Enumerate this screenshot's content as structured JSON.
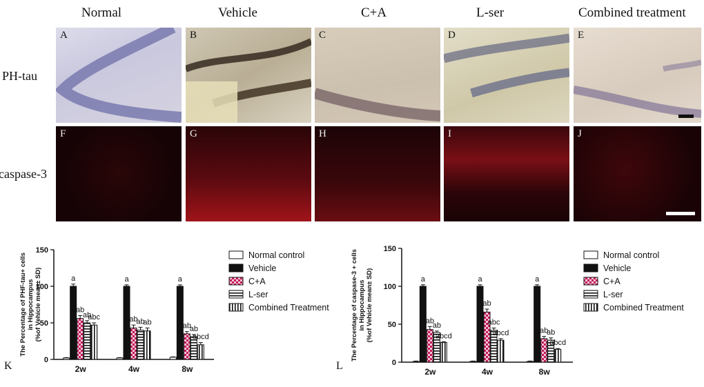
{
  "columns": [
    "Normal",
    "Vehicle",
    "C+A",
    "L-ser",
    "Combined treatment"
  ],
  "rows": [
    "PH-tau",
    "caspase-3"
  ],
  "panel_letters_top": [
    "A",
    "B",
    "C",
    "D",
    "E"
  ],
  "panel_letters_bottom": [
    "F",
    "G",
    "H",
    "I",
    "J"
  ],
  "chart_data": [
    {
      "type": "bar",
      "panel": "K",
      "ylabel_lines": [
        "The Percentage of PHF-tau+ cells",
        "in Hippocampus",
        "(%of Vehicle mean± SD)"
      ],
      "categories": [
        "2w",
        "4w",
        "8w"
      ],
      "ylim": [
        0,
        150
      ],
      "yticks": [
        0,
        50,
        100,
        150
      ],
      "series": [
        {
          "name": "Normal control",
          "values": [
            2,
            2,
            3
          ],
          "errors": [
            0.5,
            0.5,
            0.5
          ],
          "pattern": "white"
        },
        {
          "name": "Vehicle",
          "values": [
            100,
            100,
            100
          ],
          "errors": [
            3,
            2,
            2
          ],
          "pattern": "black"
        },
        {
          "name": "C+A",
          "values": [
            56,
            43,
            35
          ],
          "errors": [
            4,
            4,
            3
          ],
          "pattern": "checker"
        },
        {
          "name": "L-ser",
          "values": [
            50,
            40,
            31
          ],
          "errors": [
            3,
            4,
            3
          ],
          "pattern": "hstripe"
        },
        {
          "name": "Combined Treatment",
          "values": [
            47,
            39,
            20
          ],
          "errors": [
            3,
            4,
            3
          ],
          "pattern": "vstripe"
        }
      ],
      "annotations": [
        [
          "",
          "a",
          "ab",
          "ab",
          "abc"
        ],
        [
          "",
          "a",
          "ab",
          "ab",
          "ab"
        ],
        [
          "",
          "a",
          "ab",
          "ab",
          "abcd"
        ]
      ]
    },
    {
      "type": "bar",
      "panel": "L",
      "ylabel_lines": [
        "The Percentage of caspase-3 + cells",
        "in Hippocampus",
        "(%of Vehicle mean± SD)"
      ],
      "categories": [
        "2w",
        "4w",
        "8w"
      ],
      "ylim": [
        0,
        150
      ],
      "yticks": [
        0,
        50,
        100,
        150
      ],
      "series": [
        {
          "name": "Normal control",
          "values": [
            1,
            1,
            1
          ],
          "errors": [
            0.5,
            0.5,
            0.5
          ],
          "pattern": "white"
        },
        {
          "name": "Vehicle",
          "values": [
            100,
            100,
            100
          ],
          "errors": [
            2,
            2,
            2
          ],
          "pattern": "black"
        },
        {
          "name": "C+A",
          "values": [
            43,
            66,
            31
          ],
          "errors": [
            4,
            4,
            3
          ],
          "pattern": "checker"
        },
        {
          "name": "L-ser",
          "values": [
            39,
            42,
            29
          ],
          "errors": [
            2,
            3,
            3
          ],
          "pattern": "hstripe"
        },
        {
          "name": "Combined Treatment",
          "values": [
            26,
            29,
            17
          ],
          "errors": [
            1,
            2,
            1
          ],
          "pattern": "vstripe"
        }
      ],
      "annotations": [
        [
          "",
          "a",
          "ab",
          "ab",
          "abcd"
        ],
        [
          "",
          "a",
          "ab",
          "abc",
          "abcd"
        ],
        [
          "",
          "a",
          "ab",
          "ab",
          "abcd"
        ]
      ]
    }
  ]
}
